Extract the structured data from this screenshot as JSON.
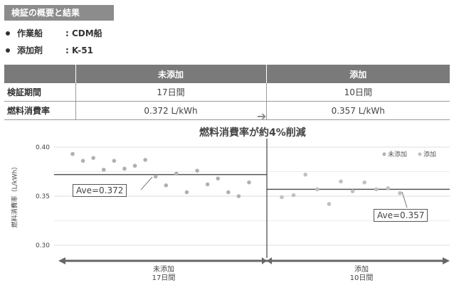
{
  "header": {
    "title": "検証の概要と結果",
    "info": [
      {
        "label": "作業船",
        "value": ": CDM船"
      },
      {
        "label": "添加剤",
        "value": ": K-51"
      }
    ]
  },
  "table": {
    "columns": [
      "",
      "未添加",
      "添加"
    ],
    "rows": [
      {
        "label": "検証期間",
        "before": "17日間",
        "after": "10日間"
      },
      {
        "label": "燃料消費率",
        "before": "0.372 L/kWh",
        "after": "0.357 L/kWh"
      }
    ]
  },
  "arrow_icon": "right-arrow-icon",
  "headline": "燃料消費率が約4%削減",
  "colors": {
    "header_bg": "#7a7a7a",
    "before_point": "#b0b0b0",
    "after_point": "#c0c0c0",
    "line": "#555555"
  },
  "chart_data": {
    "type": "scatter",
    "title": "",
    "ylabel": "燃料消費率（L/kWh）",
    "xlabel": "",
    "ylim": [
      0.3,
      0.4
    ],
    "yticks": [
      "0.40",
      "0.35",
      "0.30"
    ],
    "grid": true,
    "legend_position": "top-right",
    "series": [
      {
        "name": "未添加",
        "values": [
          0.393,
          0.386,
          0.389,
          0.377,
          0.386,
          0.378,
          0.381,
          0.387,
          0.37,
          0.361,
          0.373,
          0.354,
          0.376,
          0.362,
          0.368,
          0.354,
          0.35,
          0.364
        ],
        "average": 0.372,
        "average_label": "Ave=0.372",
        "period_label": [
          "未添加",
          "17日間"
        ]
      },
      {
        "name": "添加",
        "values": [
          0.349,
          0.351,
          0.372,
          0.357,
          0.342,
          0.365,
          0.355,
          0.364,
          0.357,
          0.358,
          0.353
        ],
        "average": 0.357,
        "average_label": "Ave=0.357",
        "period_label": [
          "添加",
          "10日間"
        ]
      }
    ]
  }
}
